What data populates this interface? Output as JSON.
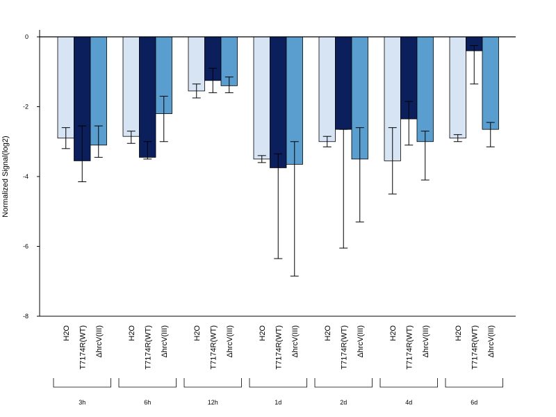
{
  "chart_data": {
    "type": "bar",
    "title": "",
    "xlabel": "",
    "ylabel": "Normalized Signal(log2)",
    "ylim": [
      -8,
      0
    ],
    "yticks": [
      "0",
      "-2",
      "-4",
      "-6",
      "-8"
    ],
    "grid": false,
    "legend": "none",
    "groups": [
      "3h",
      "6h",
      "12h",
      "1d",
      "2d",
      "4d",
      "6d"
    ],
    "series": [
      {
        "name": "H2O",
        "color": "#d6e4f4",
        "values": [
          -2.9,
          -2.85,
          -1.55,
          -3.5,
          -3.0,
          -3.55,
          -2.9
        ],
        "err_low": [
          -3.2,
          -3.05,
          -1.75,
          -3.6,
          -3.15,
          -4.5,
          -3.0
        ],
        "err_high": [
          -2.6,
          -2.7,
          -1.35,
          -3.4,
          -2.85,
          -2.6,
          -2.8
        ]
      },
      {
        "name": "T7174R(WT)",
        "color": "#0a1f5c",
        "values": [
          -3.55,
          -3.45,
          -1.25,
          -3.75,
          -2.65,
          -2.35,
          -0.4
        ],
        "err_low": [
          -4.15,
          -3.5,
          -1.6,
          -6.35,
          -6.05,
          -3.1,
          -1.35
        ],
        "err_high": [
          -2.55,
          -3.0,
          -0.9,
          -3.35,
          -2.65,
          -1.85,
          -0.25
        ]
      },
      {
        "name": "ΔhrcV(III)",
        "color": "#5a9ecf",
        "values": [
          -3.1,
          -2.2,
          -1.4,
          -3.65,
          -3.5,
          -3.0,
          -2.65
        ],
        "err_low": [
          -3.45,
          -3.0,
          -1.6,
          -6.85,
          -5.3,
          -4.1,
          -3.15
        ],
        "err_high": [
          -2.55,
          -1.7,
          -1.15,
          -3.0,
          -2.6,
          -2.7,
          -2.45
        ]
      }
    ]
  }
}
